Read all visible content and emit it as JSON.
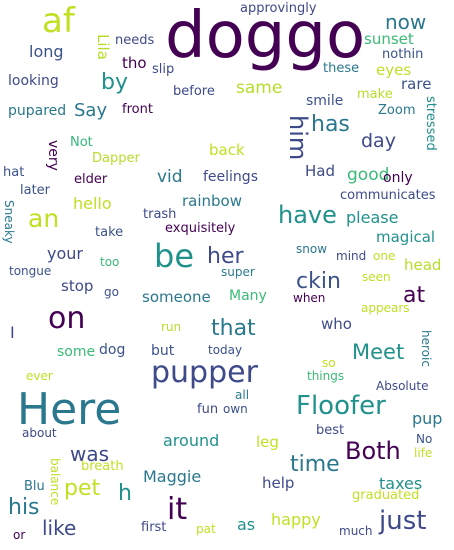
{
  "words": [
    {
      "text": "doggo",
      "color": "#440154"
    },
    {
      "text": "af",
      "color": "#c2df23"
    },
    {
      "text": "approvingly",
      "color": "#3e4a89"
    },
    {
      "text": "Lila",
      "color": "#b5de2b"
    },
    {
      "text": "needs",
      "color": "#3e4a89"
    },
    {
      "text": "now",
      "color": "#2a788e"
    },
    {
      "text": "sunset",
      "color": "#3aba76"
    },
    {
      "text": "nothin",
      "color": "#3b528b"
    },
    {
      "text": "long",
      "color": "#3b528b"
    },
    {
      "text": "tho",
      "color": "#440154"
    },
    {
      "text": "slip",
      "color": "#3e4a89"
    },
    {
      "text": "these",
      "color": "#2a788e"
    },
    {
      "text": "eyes",
      "color": "#c2df23"
    },
    {
      "text": "looking",
      "color": "#3e4a89"
    },
    {
      "text": "by",
      "color": "#21918c"
    },
    {
      "text": "same",
      "color": "#b5de2b"
    },
    {
      "text": "rare",
      "color": "#3b528b"
    },
    {
      "text": "make",
      "color": "#b5de2b"
    },
    {
      "text": "before",
      "color": "#3e4a89"
    },
    {
      "text": "pupared",
      "color": "#2a788e"
    },
    {
      "text": "Say",
      "color": "#2a788e"
    },
    {
      "text": "front",
      "color": "#440154"
    },
    {
      "text": "smile",
      "color": "#3b528b"
    },
    {
      "text": "Zoom",
      "color": "#2a788e"
    },
    {
      "text": "him",
      "color": "#3e4a89"
    },
    {
      "text": "has",
      "color": "#2a788e"
    },
    {
      "text": "stressed",
      "color": "#21918c"
    },
    {
      "text": "Not",
      "color": "#35b779"
    },
    {
      "text": "day",
      "color": "#3e4a89"
    },
    {
      "text": "very",
      "color": "#440154"
    },
    {
      "text": "back",
      "color": "#c2df23"
    },
    {
      "text": "Dapper",
      "color": "#b5de2b"
    },
    {
      "text": "hat",
      "color": "#3b528b"
    },
    {
      "text": "elder",
      "color": "#440154"
    },
    {
      "text": "feelings",
      "color": "#3e4a89"
    },
    {
      "text": "vid",
      "color": "#2a788e"
    },
    {
      "text": "Had",
      "color": "#3e4a89"
    },
    {
      "text": "good",
      "color": "#3aba76"
    },
    {
      "text": "only",
      "color": "#440154"
    },
    {
      "text": "later",
      "color": "#3b528b"
    },
    {
      "text": "communicates",
      "color": "#3e4a89"
    },
    {
      "text": "Sneaky",
      "color": "#2a788e"
    },
    {
      "text": "hello",
      "color": "#c2df23"
    },
    {
      "text": "rainbow",
      "color": "#2a788e"
    },
    {
      "text": "an",
      "color": "#c2df23"
    },
    {
      "text": "have",
      "color": "#21918c"
    },
    {
      "text": "please",
      "color": "#21918c"
    },
    {
      "text": "trash",
      "color": "#3e4a89"
    },
    {
      "text": "exquisitely",
      "color": "#440154"
    },
    {
      "text": "take",
      "color": "#3b528b"
    },
    {
      "text": "magical",
      "color": "#21918c"
    },
    {
      "text": "your",
      "color": "#3e4a89"
    },
    {
      "text": "be",
      "color": "#21918c"
    },
    {
      "text": "her",
      "color": "#3e4a89"
    },
    {
      "text": "snow",
      "color": "#2a788e"
    },
    {
      "text": "mind",
      "color": "#3e4a89"
    },
    {
      "text": "one",
      "color": "#c2df23"
    },
    {
      "text": "head",
      "color": "#b5de2b"
    },
    {
      "text": "too",
      "color": "#3aba76"
    },
    {
      "text": "super",
      "color": "#2a788e"
    },
    {
      "text": "tongue",
      "color": "#3b528b"
    },
    {
      "text": "ckin",
      "color": "#3b528b"
    },
    {
      "text": "seen",
      "color": "#c2df23"
    },
    {
      "text": "stop",
      "color": "#3e4a89"
    },
    {
      "text": "go",
      "color": "#3b528b"
    },
    {
      "text": "someone",
      "color": "#2a788e"
    },
    {
      "text": "Many",
      "color": "#3aba76"
    },
    {
      "text": "when",
      "color": "#440154"
    },
    {
      "text": "at",
      "color": "#440154"
    },
    {
      "text": "appears",
      "color": "#c2df23"
    },
    {
      "text": "on",
      "color": "#440154"
    },
    {
      "text": "I",
      "color": "#3e4a89"
    },
    {
      "text": "that",
      "color": "#2a788e"
    },
    {
      "text": "who",
      "color": "#3e4a89"
    },
    {
      "text": "run",
      "color": "#b5de2b"
    },
    {
      "text": "dog",
      "color": "#3b528b"
    },
    {
      "text": "some",
      "color": "#3aba76"
    },
    {
      "text": "but",
      "color": "#3b528b"
    },
    {
      "text": "today",
      "color": "#3b528b"
    },
    {
      "text": "Meet",
      "color": "#21918c"
    },
    {
      "text": "heroic",
      "color": "#2a788e"
    },
    {
      "text": "so",
      "color": "#c2df23"
    },
    {
      "text": "pupper",
      "color": "#3e4a89"
    },
    {
      "text": "things",
      "color": "#3aba76"
    },
    {
      "text": "ever",
      "color": "#c2df23"
    },
    {
      "text": "Absolute",
      "color": "#3e4a89"
    },
    {
      "text": "all",
      "color": "#2a788e"
    },
    {
      "text": "Here",
      "color": "#2a788e"
    },
    {
      "text": "fun",
      "color": "#3e4a89"
    },
    {
      "text": "own",
      "color": "#3b528b"
    },
    {
      "text": "Floofer",
      "color": "#21918c"
    },
    {
      "text": "pup",
      "color": "#2a788e"
    },
    {
      "text": "about",
      "color": "#3e4a89"
    },
    {
      "text": "around",
      "color": "#21918c"
    },
    {
      "text": "best",
      "color": "#3e4a89"
    },
    {
      "text": "leg",
      "color": "#c2df23"
    },
    {
      "text": "No",
      "color": "#3b528b"
    },
    {
      "text": "was",
      "color": "#3e4a89"
    },
    {
      "text": "Both",
      "color": "#440154"
    },
    {
      "text": "life",
      "color": "#c2df23"
    },
    {
      "text": "balance",
      "color": "#c2df23"
    },
    {
      "text": "breath",
      "color": "#c2df23"
    },
    {
      "text": "time",
      "color": "#2a788e"
    },
    {
      "text": "pet",
      "color": "#c2df23"
    },
    {
      "text": "h",
      "color": "#21918c"
    },
    {
      "text": "Maggie",
      "color": "#2a788e"
    },
    {
      "text": "taxes",
      "color": "#21918c"
    },
    {
      "text": "Blu",
      "color": "#2a788e"
    },
    {
      "text": "help",
      "color": "#3e4a89"
    },
    {
      "text": "graduated",
      "color": "#c2df23"
    },
    {
      "text": "his",
      "color": "#2a788e"
    },
    {
      "text": "it",
      "color": "#440154"
    },
    {
      "text": "like",
      "color": "#3e4a89"
    },
    {
      "text": "happy",
      "color": "#c2df23"
    },
    {
      "text": "just",
      "color": "#3e4a89"
    },
    {
      "text": "first",
      "color": "#3e4a89"
    },
    {
      "text": "pat",
      "color": "#c2df23"
    },
    {
      "text": "as",
      "color": "#21918c"
    },
    {
      "text": "much",
      "color": "#3e4a89"
    },
    {
      "text": "or",
      "color": "#440154"
    }
  ]
}
